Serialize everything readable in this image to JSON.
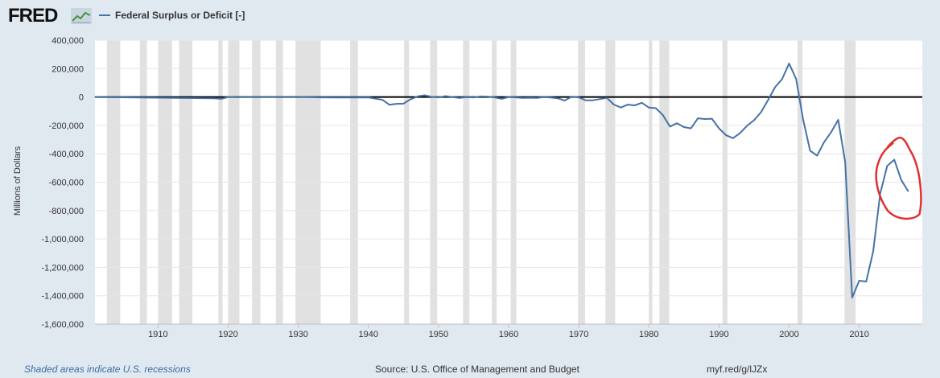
{
  "header": {
    "logo_text": "FRED",
    "logo_icon": "trend-line-icon"
  },
  "footer": {
    "recessions_note": "Shaded areas indicate U.S. recessions",
    "source": "Source: U.S. Office of Management and Budget",
    "short_url": "myf.red/g/lJZx"
  },
  "colors": {
    "page_bg": "#e1e9f0",
    "plot_bg": "#ffffff",
    "recession": "#e1e1e1",
    "series": "#4572a7",
    "annotation": "#e03030"
  },
  "chart_data": {
    "type": "line",
    "ylabel": "Millions of Dollars",
    "ylim": [
      -1600000,
      400000
    ],
    "xlim": [
      1901,
      2019
    ],
    "yticks": [
      400000,
      200000,
      0,
      -200000,
      -400000,
      -600000,
      -800000,
      -1000000,
      -1200000,
      -1400000,
      -1600000
    ],
    "ytick_labels": [
      "400,000",
      "200,000",
      "0",
      "-200,000",
      "-400,000",
      "-600,000",
      "-800,000",
      "-1,000,000",
      "-1,200,000",
      "-1,400,000",
      "-1,600,000"
    ],
    "xticks": [
      1910,
      1920,
      1930,
      1940,
      1950,
      1960,
      1970,
      1980,
      1990,
      2000,
      2010
    ],
    "xtick_labels": [
      "1910",
      "1920",
      "1930",
      "1940",
      "1950",
      "1960",
      "1970",
      "1980",
      "1990",
      "2000",
      "2010"
    ],
    "grid": true,
    "zero_line": true,
    "legend_position": "top-left",
    "series": [
      {
        "name": "Federal Surplus or Deficit [-]",
        "x": [
          1901,
          1918,
          1919,
          1920,
          1921,
          1930,
          1933,
          1936,
          1940,
          1942,
          1943,
          1944,
          1945,
          1946,
          1947,
          1948,
          1949,
          1950,
          1951,
          1952,
          1953,
          1954,
          1955,
          1956,
          1957,
          1958,
          1959,
          1960,
          1961,
          1962,
          1963,
          1964,
          1965,
          1966,
          1967,
          1968,
          1969,
          1970,
          1971,
          1972,
          1973,
          1974,
          1975,
          1976,
          1977,
          1978,
          1979,
          1980,
          1981,
          1982,
          1983,
          1984,
          1985,
          1986,
          1987,
          1988,
          1989,
          1990,
          1991,
          1992,
          1993,
          1994,
          1995,
          1996,
          1997,
          1998,
          1999,
          2000,
          2001,
          2002,
          2003,
          2004,
          2005,
          2006,
          2007,
          2008,
          2009,
          2010,
          2011,
          2012,
          2013,
          2014,
          2015,
          2016,
          2017
        ],
        "values": [
          0,
          -9000,
          -13000,
          0,
          1000,
          1000,
          -3000,
          -4000,
          -3000,
          -20000,
          -55000,
          -48000,
          -47000,
          -16000,
          4000,
          12000,
          1000,
          -3000,
          6000,
          -1000,
          -7000,
          -1000,
          -3000,
          4000,
          3000,
          -3000,
          -13000,
          0,
          -3000,
          -7000,
          -5000,
          -6000,
          -1000,
          -4000,
          -9000,
          -25000,
          3000,
          -3000,
          -23000,
          -23000,
          -15000,
          -6000,
          -53000,
          -74000,
          -54000,
          -59000,
          -41000,
          -74000,
          -79000,
          -128000,
          -208000,
          -185000,
          -212000,
          -221000,
          -150000,
          -155000,
          -153000,
          -221000,
          -269000,
          -290000,
          -255000,
          -203000,
          -164000,
          -107000,
          -22000,
          69000,
          126000,
          236000,
          128000,
          -158000,
          -378000,
          -413000,
          -318000,
          -248000,
          -161000,
          -459000,
          -1413000,
          -1294000,
          -1300000,
          -1087000,
          -680000,
          -485000,
          -442000,
          -585000,
          -665000
        ]
      }
    ],
    "recessions": [
      [
        1902.7,
        1904.6
      ],
      [
        1907.4,
        1908.4
      ],
      [
        1910.0,
        1912.0
      ],
      [
        1913.0,
        1914.9
      ],
      [
        1918.6,
        1919.2
      ],
      [
        1920.0,
        1921.6
      ],
      [
        1923.4,
        1924.6
      ],
      [
        1926.8,
        1927.8
      ],
      [
        1929.6,
        1933.2
      ],
      [
        1937.4,
        1938.5
      ],
      [
        1945.1,
        1945.8
      ],
      [
        1948.8,
        1949.8
      ],
      [
        1953.5,
        1954.4
      ],
      [
        1957.6,
        1958.3
      ],
      [
        1960.3,
        1961.1
      ],
      [
        1969.9,
        1970.9
      ],
      [
        1973.8,
        1975.2
      ],
      [
        1980.0,
        1980.5
      ],
      [
        1981.5,
        1982.9
      ],
      [
        1990.5,
        1991.2
      ],
      [
        2001.2,
        2001.9
      ],
      [
        2007.9,
        2009.5
      ]
    ],
    "annotation": {
      "type": "circle",
      "x_range": [
        2012.5,
        2018.6
      ],
      "y_range": [
        -860000,
        -270000
      ]
    }
  }
}
